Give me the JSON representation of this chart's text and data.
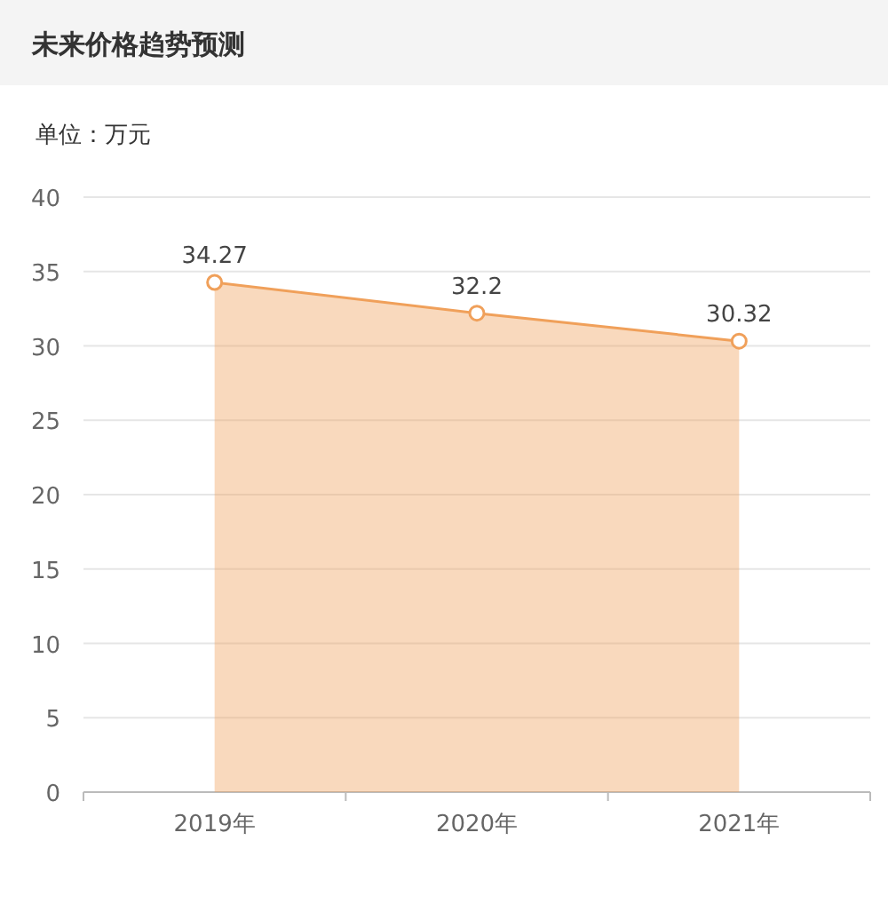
{
  "chart_data": {
    "type": "area",
    "title": "未来价格趋势预测",
    "ylabel": "单位：万元",
    "categories": [
      "2019年",
      "2020年",
      "2021年"
    ],
    "series": [
      {
        "color": "#f0a05a",
        "values": [
          34.27,
          32.2,
          30.32
        ]
      }
    ],
    "ylim": [
      0,
      40
    ],
    "yticks": [
      0,
      5,
      10,
      15,
      20,
      25,
      30,
      35,
      40
    ],
    "grid": "y",
    "marker": "circle",
    "data_labels": true
  }
}
